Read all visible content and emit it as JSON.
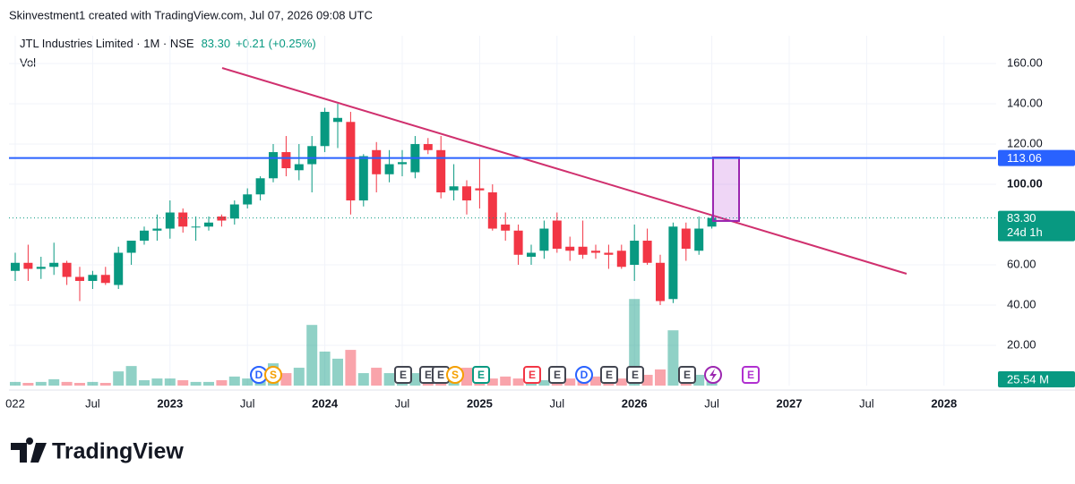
{
  "chart_data": {
    "type": "candlestick",
    "credit": "Skinvestment1 created with TradingView.com, Jul 07, 2026 09:08 UTC",
    "title": "JTL Industries Limited · 1M · NSE",
    "price": "83.30",
    "change": "+0.21 (+0.25%)",
    "volume_title": "Vol",
    "brand": "TradingView",
    "up_color": "#089981",
    "down_color": "#f23645",
    "categories": [
      "022",
      null,
      null,
      null,
      null,
      null,
      "Jul",
      null,
      null,
      null,
      null,
      null,
      "2023",
      null,
      null,
      null,
      null,
      null,
      "Jul",
      null,
      null,
      null,
      null,
      null,
      "2024",
      null,
      null,
      null,
      null,
      null,
      "Jul",
      null,
      null,
      null,
      null,
      null,
      "2025",
      null,
      null,
      null,
      null,
      null,
      "Jul",
      null,
      null,
      null,
      null,
      null,
      "2026",
      null,
      null,
      null,
      null,
      null,
      "Jul"
    ],
    "future_labels": [
      "2027",
      "Jul",
      "2028"
    ],
    "open": [
      57,
      61,
      58,
      59,
      61,
      54,
      52,
      55,
      50,
      66,
      72,
      77,
      78,
      86,
      79,
      79,
      84,
      83,
      90,
      95,
      103,
      116,
      107,
      110,
      119,
      131,
      131,
      92,
      117,
      105,
      110,
      106,
      120,
      117,
      97,
      99,
      98,
      96,
      80,
      77,
      64,
      67,
      82,
      69,
      69,
      67,
      66,
      67,
      60,
      72,
      61,
      43,
      78,
      67,
      79
    ],
    "high": [
      66,
      70,
      64,
      71,
      62,
      59,
      57,
      59,
      69,
      72,
      79,
      85,
      92,
      88,
      84,
      84,
      85,
      92,
      98,
      104,
      120,
      124,
      120,
      124,
      138,
      140,
      136,
      115,
      121,
      117,
      117,
      124,
      123,
      124,
      110,
      102,
      113,
      100,
      86,
      80,
      70,
      82,
      86,
      74,
      82,
      70,
      70,
      70,
      80,
      78,
      65,
      81,
      81,
      84,
      85
    ],
    "low": [
      52,
      52,
      53,
      55,
      50,
      42,
      48,
      50,
      48,
      60,
      70,
      72,
      73,
      76,
      72,
      77,
      79,
      80,
      88,
      92,
      101,
      104,
      102,
      96,
      116,
      118,
      85,
      89,
      96,
      101,
      104,
      103,
      115,
      93,
      92,
      85,
      88,
      77,
      72,
      60,
      60,
      63,
      66,
      62,
      63,
      63,
      58,
      58,
      52,
      60,
      40,
      41,
      62,
      65,
      78
    ],
    "close": [
      61,
      58,
      59,
      61,
      54,
      52,
      55,
      51,
      66,
      72,
      77,
      78,
      86,
      79,
      79,
      81,
      82,
      90,
      95,
      103,
      116,
      108,
      110,
      119,
      136,
      133,
      92,
      114,
      105,
      110,
      111,
      120,
      117,
      96,
      99,
      92,
      97,
      78,
      77,
      65,
      66,
      78,
      68,
      67,
      65,
      66,
      65,
      59,
      72,
      61,
      42,
      79,
      68,
      78,
      83.3
    ],
    "volume": [
      15,
      11,
      15,
      26,
      15,
      11,
      15,
      11,
      58,
      80,
      22,
      29,
      29,
      22,
      15,
      15,
      22,
      37,
      29,
      37,
      91,
      51,
      73,
      248,
      139,
      110,
      146,
      51,
      73,
      51,
      37,
      51,
      29,
      37,
      22,
      73,
      44,
      29,
      37,
      29,
      44,
      22,
      44,
      29,
      22,
      37,
      22,
      29,
      354,
      44,
      66,
      226,
      58,
      44,
      25.54
    ],
    "volume_ylim": [
      0,
      1430
    ],
    "last_volume_label": "25.54 M",
    "last_price_label": "83.30",
    "countdown": "24d 1h",
    "hline": {
      "value": 113.06,
      "label": "113.06",
      "color": "#2962ff"
    },
    "ylim": [
      0,
      173.8
    ],
    "yticks": [
      {
        "value": 20,
        "label": "20.00"
      },
      {
        "value": 40,
        "label": "40.00"
      },
      {
        "value": 60,
        "label": "60.00"
      },
      {
        "value": 100,
        "label": "100.00"
      },
      {
        "value": 120,
        "label": "120.00"
      },
      {
        "value": 140,
        "label": "140.00"
      },
      {
        "value": 160,
        "label": "160.00"
      }
    ],
    "events": [
      {
        "label": "D",
        "color": "#2962ff"
      },
      {
        "label": "S",
        "color": "#f59f00"
      },
      {
        "label": "E",
        "color": "#434651"
      },
      {
        "label": "E",
        "color": "#434651"
      },
      {
        "label": "E",
        "color": "#434651"
      },
      {
        "label": "S",
        "color": "#f59f00"
      },
      {
        "label": "E",
        "color": "#089981"
      },
      {
        "label": "E",
        "color": "#f23645"
      },
      {
        "label": "E",
        "color": "#434651"
      },
      {
        "label": "D",
        "color": "#2962ff"
      },
      {
        "label": "E",
        "color": "#434651"
      },
      {
        "label": "E",
        "color": "#434651"
      },
      {
        "label": "E",
        "color": "#434651"
      },
      {
        "label": "E",
        "color": "#b030d0"
      }
    ]
  }
}
